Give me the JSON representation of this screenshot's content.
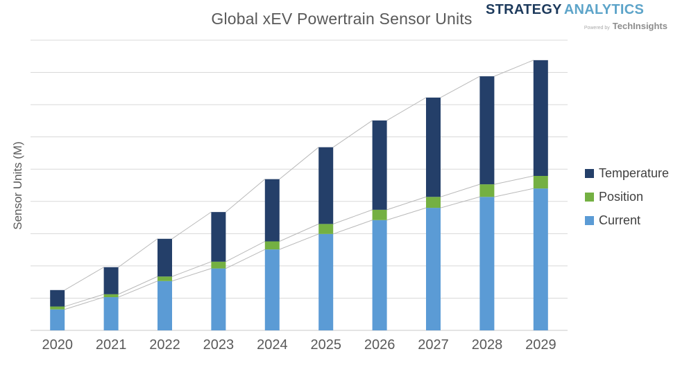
{
  "branding": {
    "name_part1": "STRATEGY",
    "name_part2": "ANALYTICS",
    "tagline_prefix": "Powered by",
    "tagline_name": "TechInsights",
    "name_part1_color": "#1d3a5c",
    "name_part2_color": "#5da4c9",
    "tagline_color": "#8d8d8d"
  },
  "chart_data": {
    "type": "bar",
    "stacked": true,
    "title": "Global xEV Powertrain Sensor Units",
    "xlabel": "",
    "ylabel": "Sensor Units (M)",
    "categories": [
      "2020",
      "2021",
      "2022",
      "2023",
      "2024",
      "2025",
      "2026",
      "2027",
      "2028",
      "2029"
    ],
    "series": [
      {
        "name": "Current",
        "color": "#5B9BD5",
        "values": [
          0.65,
          1.03,
          1.53,
          1.92,
          2.51,
          2.99,
          3.42,
          3.8,
          4.14,
          4.4
        ]
      },
      {
        "name": "Position",
        "color": "#74B042",
        "values": [
          0.09,
          0.09,
          0.14,
          0.21,
          0.25,
          0.31,
          0.32,
          0.34,
          0.39,
          0.39
        ]
      },
      {
        "name": "Temperature",
        "color": "#243F69",
        "values": [
          0.51,
          0.84,
          1.17,
          1.54,
          1.93,
          2.38,
          2.77,
          3.08,
          3.35,
          3.59
        ]
      }
    ],
    "stack_totals": [
      1.25,
      1.96,
      2.84,
      3.67,
      4.69,
      5.68,
      6.51,
      7.22,
      7.88,
      8.38
    ],
    "value_units": "relative gridline intervals (y-axis ticks are unlabeled; 1.0 = one gridline)",
    "ylim": [
      0,
      9
    ],
    "y_axis": {
      "tick_labels_visible": false,
      "gridline_count": 10
    },
    "grid": "horizontal gridlines on",
    "series_lines": true,
    "series_line_color": "#b9b9b9",
    "gridline_color": "#d8d8d8",
    "baseline_color": "#c8c8c8",
    "legend_position": "right",
    "legend_order_top_to_bottom": [
      "Temperature",
      "Position",
      "Current"
    ]
  }
}
